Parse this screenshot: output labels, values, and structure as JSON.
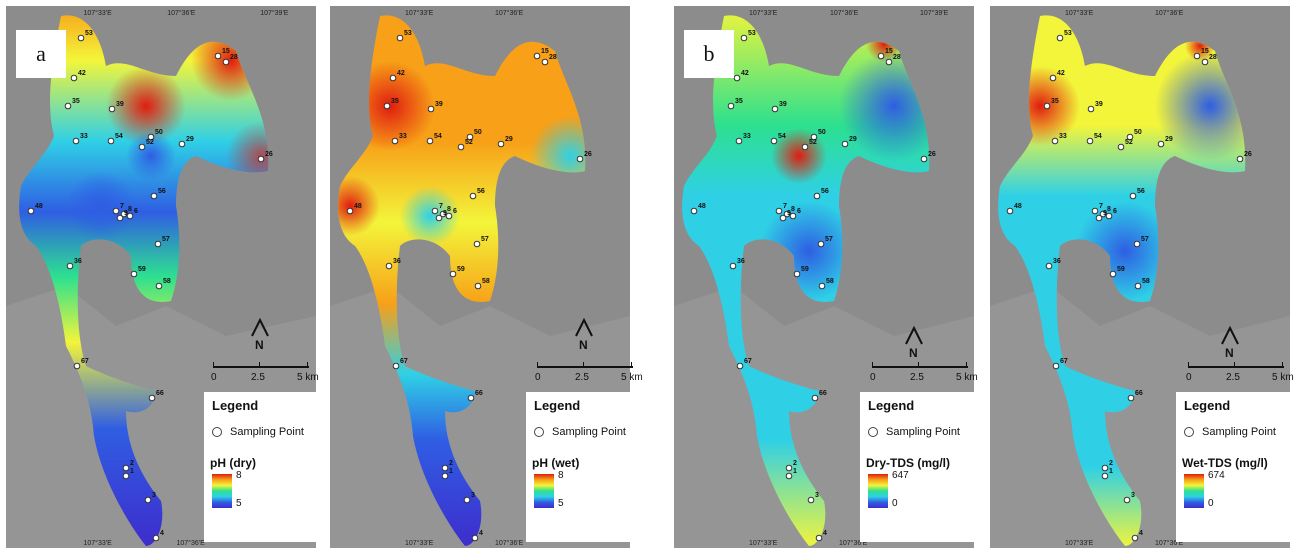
{
  "panels": [
    {
      "label": "a",
      "legend_title": "Legend",
      "sampling_point_label": "Sampling Point",
      "variable": "pH (dry)",
      "range_max": "8",
      "range_min": "5",
      "coord_top": [
        "107°33'E",
        "107°36'E",
        "107°39'E"
      ],
      "coord_bottom": [
        "107°33'E",
        "107°36'E"
      ],
      "north_label": "N",
      "scale": [
        "0",
        "2.5",
        "5 km"
      ]
    },
    {
      "label": "",
      "legend_title": "Legend",
      "sampling_point_label": "Sampling Point",
      "variable": "pH (wet)",
      "range_max": "8",
      "range_min": "5",
      "coord_top": [
        "107°33'E",
        "107°36'E"
      ],
      "coord_bottom": [
        "107°33'E",
        "107°36'E"
      ],
      "north_label": "N",
      "scale": [
        "0",
        "2.5",
        "5 km"
      ]
    },
    {
      "label": "b",
      "legend_title": "Legend",
      "sampling_point_label": "Sampling Point",
      "variable": "Dry-TDS (mg/l)",
      "range_max": "647",
      "range_min": "0",
      "coord_top": [
        "107°33'E",
        "107°36'E",
        "107°39'E"
      ],
      "coord_bottom": [
        "107°33'E",
        "107°36'E"
      ],
      "north_label": "N",
      "scale": [
        "0",
        "2.5",
        "5 km"
      ]
    },
    {
      "label": "",
      "legend_title": "Legend",
      "sampling_point_label": "Sampling Point",
      "variable": "Wet-TDS (mg/l)",
      "range_max": "674",
      "range_min": "0",
      "coord_top": [
        "107°33'E",
        "107°36'E"
      ],
      "coord_bottom": [
        "107°33'E",
        "107°36'E"
      ],
      "north_label": "N",
      "scale": [
        "0",
        "2.5",
        "5 km"
      ]
    }
  ],
  "sampling_points": [
    "53",
    "42",
    "35",
    "39",
    "33",
    "54",
    "50",
    "52",
    "29",
    "15",
    "28",
    "26",
    "48",
    "7",
    "8",
    "9",
    "6",
    "56",
    "57",
    "36",
    "59",
    "58",
    "67",
    "66",
    "2",
    "1",
    "3",
    "4"
  ],
  "colors": {
    "red": "#e01d10",
    "orange": "#f7a018",
    "yellow": "#f3f53a",
    "green": "#2de08f",
    "cyan": "#2fd0e6",
    "blue": "#2f5ee3",
    "purple": "#3e2ccc",
    "hillshade": "#8c8c8c"
  }
}
